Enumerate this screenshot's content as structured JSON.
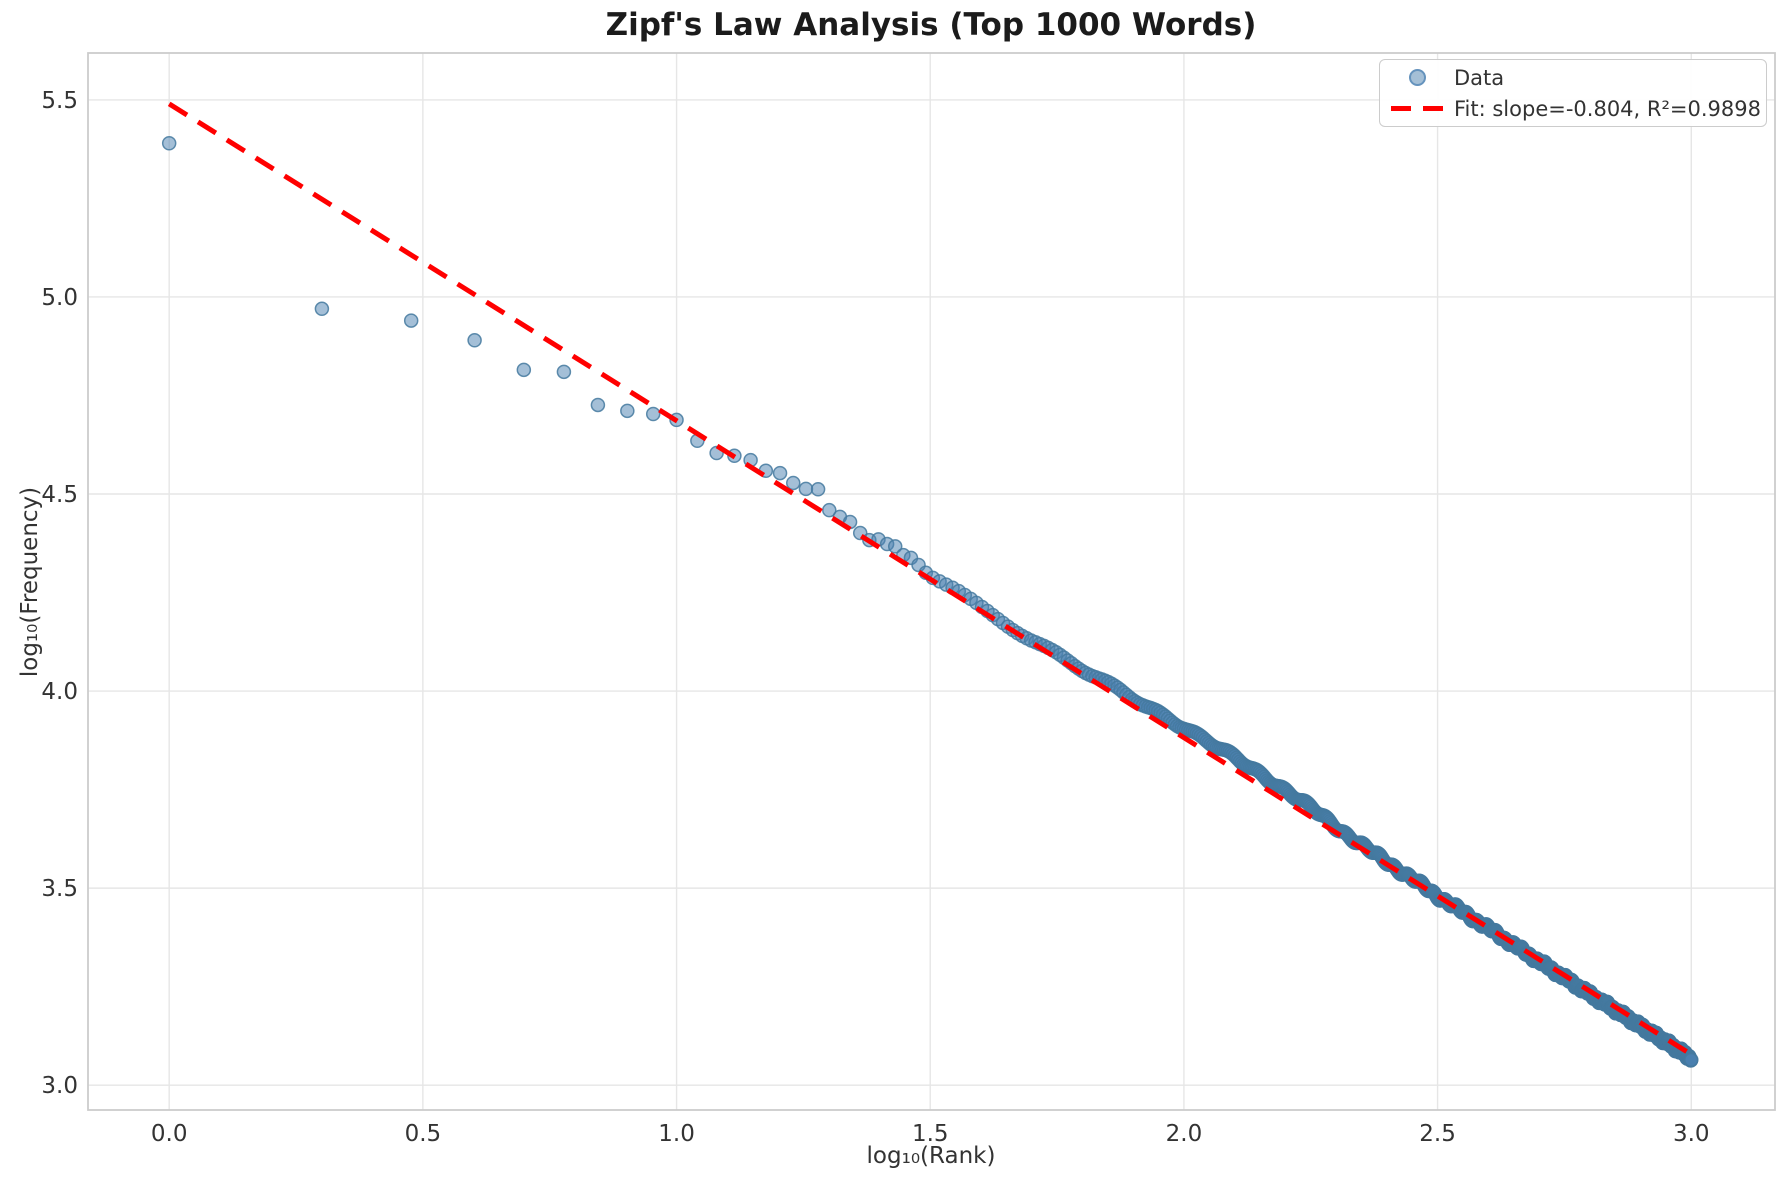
{
  "chart_data": {
    "type": "scatter",
    "title": "Zipf's Law Analysis (Top 1000 Words)",
    "xlabel": "log₁₀(Rank)",
    "ylabel": "log₁₀(Frequency)",
    "xlim": [
      -0.16,
      3.165
    ],
    "ylim": [
      2.937,
      5.619
    ],
    "grid": true,
    "xticks": {
      "values": [
        0.0,
        0.5,
        1.0,
        1.5,
        2.0,
        2.5,
        3.0
      ],
      "labels": [
        "0.0",
        "0.5",
        "1.0",
        "1.5",
        "2.0",
        "2.5",
        "3.0"
      ]
    },
    "yticks": {
      "values": [
        3.0,
        3.5,
        4.0,
        4.5,
        5.0,
        5.5
      ],
      "labels": [
        "3.0",
        "3.5",
        "4.0",
        "4.5",
        "5.0",
        "5.5"
      ]
    },
    "colors": {
      "marker_fill": "#4a80b0",
      "marker_fill_opacity": 0.5,
      "marker_edge": "#44799f",
      "marker_edge_opacity": 0.85,
      "fit_line": "#ff0000",
      "grid_line": "#e6e6e6",
      "spine": "#cccccc",
      "tick_text": "#333333",
      "title_text": "#1b1b1b"
    },
    "legend": {
      "position": "upper right",
      "entries": [
        {
          "type": "marker",
          "label": "Data"
        },
        {
          "type": "dashed-line",
          "label": "Fit: slope=-0.804, R²=0.9898"
        }
      ]
    },
    "fit": {
      "slope": -0.804,
      "intercept": 5.49,
      "r_squared": 0.9898,
      "x_range": [
        0.0,
        3.0
      ],
      "color": "#ff0000",
      "linestyle": "dashed",
      "linewidth": 5,
      "dash_pattern": [
        21,
        13
      ]
    },
    "series": [
      {
        "name": "Data",
        "n_points": 1000,
        "x_is_log10_rank": true,
        "marker_radius": 6.5,
        "band_scatter": 0.005,
        "head_points": [
          [
            0.0,
            5.39
          ],
          [
            0.301,
            4.97
          ],
          [
            0.477,
            4.94
          ],
          [
            0.602,
            4.89
          ],
          [
            0.699,
            4.815
          ],
          [
            0.778,
            4.81
          ],
          [
            0.845,
            4.726
          ],
          [
            0.903,
            4.711
          ],
          [
            0.954,
            4.703
          ],
          [
            1.0,
            4.688
          ],
          [
            1.041,
            4.635
          ],
          [
            1.079,
            4.604
          ],
          [
            1.114,
            4.597
          ],
          [
            1.146,
            4.586
          ],
          [
            1.176,
            4.559
          ],
          [
            1.204,
            4.553
          ],
          [
            1.23,
            4.528
          ],
          [
            1.255,
            4.513
          ],
          [
            1.279,
            4.512
          ],
          [
            1.301,
            4.459
          ],
          [
            1.322,
            4.442
          ],
          [
            1.342,
            4.429
          ],
          [
            1.362,
            4.401
          ],
          [
            1.38,
            4.383
          ],
          [
            1.398,
            4.385
          ],
          [
            1.415,
            4.373
          ],
          [
            1.431,
            4.367
          ],
          [
            1.447,
            4.345
          ],
          [
            1.462,
            4.338
          ],
          [
            1.477,
            4.32
          ]
        ],
        "band_anchors": [
          [
            1.477,
            4.32
          ],
          [
            1.505,
            4.292
          ],
          [
            1.55,
            4.258
          ],
          [
            1.6,
            4.214
          ],
          [
            1.65,
            4.173
          ],
          [
            1.7,
            4.131
          ],
          [
            1.75,
            4.092
          ],
          [
            1.8,
            4.053
          ],
          [
            1.85,
            4.016
          ],
          [
            1.9,
            3.98
          ],
          [
            1.95,
            3.945
          ],
          [
            2.0,
            3.91
          ],
          [
            2.05,
            3.87
          ],
          [
            2.1,
            3.83
          ],
          [
            2.15,
            3.79
          ],
          [
            2.2,
            3.749
          ],
          [
            2.25,
            3.704
          ],
          [
            2.3,
            3.655
          ],
          [
            2.35,
            3.61
          ],
          [
            2.4,
            3.566
          ],
          [
            2.45,
            3.524
          ],
          [
            2.5,
            3.48
          ],
          [
            2.55,
            3.439
          ],
          [
            2.6,
            3.398
          ],
          [
            2.65,
            3.356
          ],
          [
            2.7,
            3.314
          ],
          [
            2.75,
            3.273
          ],
          [
            2.8,
            3.231
          ],
          [
            2.85,
            3.191
          ],
          [
            2.9,
            3.15
          ],
          [
            2.95,
            3.11
          ],
          [
            3.0,
            3.068
          ]
        ]
      }
    ]
  }
}
